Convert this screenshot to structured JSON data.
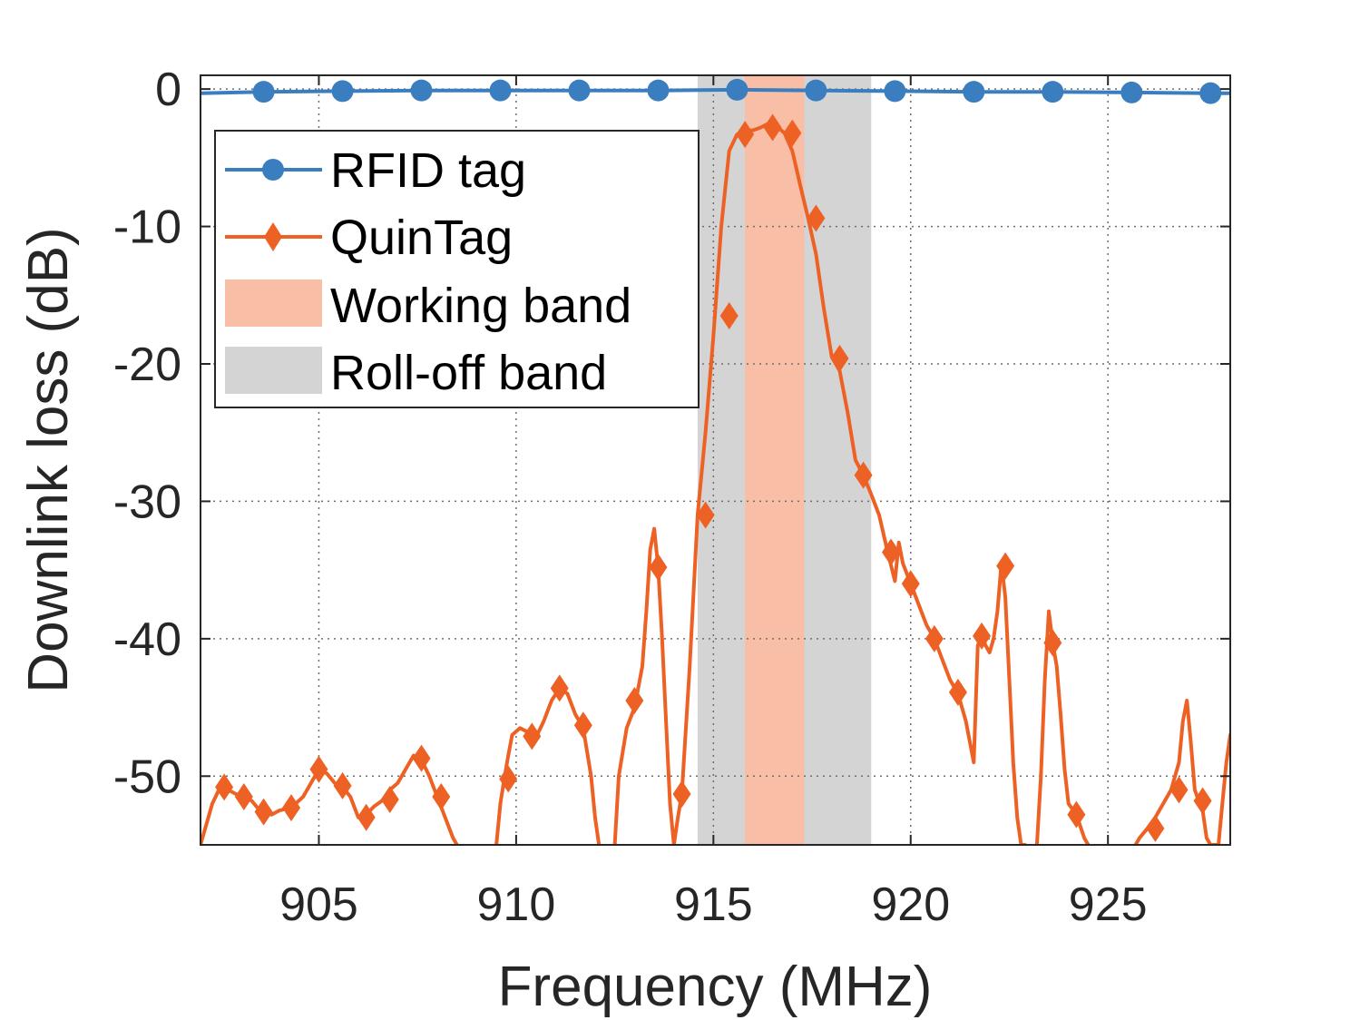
{
  "chart_data": {
    "type": "line",
    "xlabel": "Frequency (MHz)",
    "ylabel": "Downlink loss (dB)",
    "xlim": [
      902,
      928.1
    ],
    "ylim": [
      -55,
      1
    ],
    "x_ticks": [
      905,
      910,
      915,
      920,
      925
    ],
    "y_ticks": [
      0,
      -10,
      -20,
      -30,
      -40,
      -50
    ],
    "grid": true,
    "legend_position": "top-left",
    "bands": [
      {
        "name": "Roll-off band",
        "x": [
          914.6,
          919.0
        ],
        "color": "#d4d4d4"
      },
      {
        "name": "Working band",
        "x": [
          915.8,
          917.3
        ],
        "color": "#f8bea6"
      }
    ],
    "series": [
      {
        "name": "RFID tag",
        "color": "#3a7ebf",
        "marker": "circle",
        "x": [
          902.0,
          903.6,
          905.6,
          907.6,
          909.6,
          911.6,
          913.6,
          915.6,
          917.6,
          919.6,
          921.6,
          923.6,
          925.6,
          927.6,
          928.1
        ],
        "y": [
          -0.3,
          -0.2,
          -0.15,
          -0.1,
          -0.1,
          -0.1,
          -0.1,
          -0.05,
          -0.1,
          -0.15,
          -0.2,
          -0.2,
          -0.25,
          -0.3,
          -0.3
        ],
        "marker_x": [
          903.6,
          905.6,
          907.6,
          909.6,
          911.6,
          913.6,
          915.6,
          917.6,
          919.6,
          921.6,
          923.6,
          925.6,
          927.6
        ]
      },
      {
        "name": "QuinTag",
        "color": "#ee6124",
        "marker": "diamond",
        "segments": [
          {
            "x": [
              902.0,
              902.1,
              902.3,
              902.5,
              902.7,
              902.9,
              903.1,
              903.3,
              903.5,
              903.8,
              904.0,
              904.3,
              904.6,
              904.8,
              905.0,
              905.2,
              905.4,
              905.6,
              905.8,
              906.0,
              906.2,
              906.4,
              906.6,
              906.8,
              907.0,
              907.2,
              907.4,
              907.6,
              907.8,
              908.0,
              908.2,
              908.4,
              908.5
            ],
            "y": [
              -55,
              -54,
              -52,
              -50.8,
              -51,
              -51.3,
              -51.5,
              -51.8,
              -52.5,
              -52.8,
              -52.5,
              -52.3,
              -51.5,
              -50.5,
              -49.5,
              -49.8,
              -50.5,
              -50.8,
              -51.5,
              -53.0,
              -52.8,
              -52.2,
              -51.8,
              -51.0,
              -50.5,
              -49.5,
              -48.5,
              -48.8,
              -50.0,
              -51.5,
              -53.0,
              -54.5,
              -55
            ]
          },
          {
            "x": [
              909.5,
              909.6,
              909.7,
              909.8,
              909.9,
              910.1,
              910.3,
              910.5,
              910.7,
              910.9,
              911.1,
              911.3,
              911.5,
              911.7,
              911.9,
              912.0,
              912.1
            ],
            "y": [
              -55,
              -52,
              -50.2,
              -48.5,
              -47.0,
              -46.5,
              -46.8,
              -47.2,
              -46.0,
              -44.5,
              -43.6,
              -44.0,
              -45.5,
              -46.5,
              -50.0,
              -53.0,
              -55
            ]
          },
          {
            "x": [
              912.5,
              912.6,
              912.8,
              913.0,
              913.2,
              913.3,
              913.4,
              913.5,
              913.6,
              913.7,
              913.8,
              913.9,
              914.0,
              914.1,
              914.2,
              914.4,
              914.6,
              914.8,
              915.0,
              915.2,
              915.4,
              915.6,
              915.8,
              916.0,
              916.2,
              916.4,
              916.6,
              916.8,
              917.0,
              917.2,
              917.4,
              917.6,
              917.8,
              918.0,
              918.2,
              918.4,
              918.6,
              918.8,
              919.0,
              919.2,
              919.4,
              919.6,
              919.7,
              919.8,
              920.0,
              920.2,
              920.4,
              920.6,
              920.8,
              921.0,
              921.2,
              921.4,
              921.6,
              921.7,
              921.8,
              921.9,
              922.0,
              922.1,
              922.2,
              922.3,
              922.4,
              922.5,
              922.6,
              922.7,
              922.8,
              922.9
            ],
            "y": [
              -55,
              -50,
              -46.5,
              -45.0,
              -42.0,
              -38.0,
              -33.5,
              -32.0,
              -34.8,
              -40.0,
              -46.0,
              -52.0,
              -55,
              -53.0,
              -51.3,
              -42.0,
              -31.0,
              -25.0,
              -18.0,
              -10.0,
              -4.5,
              -3.3,
              -3.0,
              -3.0,
              -2.8,
              -2.5,
              -2.7,
              -3.2,
              -4.5,
              -7.0,
              -9.4,
              -12.0,
              -16.0,
              -19.5,
              -20.5,
              -23.5,
              -27.0,
              -28.1,
              -29.5,
              -31.0,
              -33.5,
              -35.8,
              -33.0,
              -34.5,
              -36.0,
              -37.5,
              -39.0,
              -40.0,
              -41.5,
              -43.0,
              -44.0,
              -46.0,
              -49.0,
              -40.5,
              -39.8,
              -40.5,
              -41.0,
              -40.0,
              -38.0,
              -34.5,
              -37.0,
              -43.0,
              -49.0,
              -53.0,
              -55,
              -55
            ]
          },
          {
            "x": [
              923.2,
              923.3,
              923.4,
              923.5,
              923.6,
              923.7,
              923.8,
              923.9,
              924.0,
              924.2,
              924.4,
              924.5
            ],
            "y": [
              -55,
              -50.0,
              -43.0,
              -38.0,
              -40.3,
              -42.0,
              -45.5,
              -49.5,
              -52.0,
              -52.8,
              -54.5,
              -55
            ]
          },
          {
            "x": [
              925.7,
              925.8,
              926.0,
              926.2,
              926.4,
              926.6,
              926.8,
              926.9,
              927.0,
              927.1,
              927.2,
              927.3,
              927.4,
              927.5,
              927.6,
              927.7,
              927.8,
              927.9,
              928.0,
              928.1
            ],
            "y": [
              -55,
              -54.5,
              -53.8,
              -53.0,
              -52.0,
              -51.0,
              -49.0,
              -46.0,
              -44.5,
              -47.5,
              -51.0,
              -51.8,
              -52.5,
              -54.5,
              -55,
              -55,
              -55,
              -52.0,
              -49.0,
              -47.0
            ]
          }
        ],
        "markers": [
          [
            902.6,
            -50.8
          ],
          [
            903.1,
            -51.5
          ],
          [
            903.6,
            -52.6
          ],
          [
            904.3,
            -52.3
          ],
          [
            905.0,
            -49.5
          ],
          [
            905.6,
            -50.7
          ],
          [
            906.2,
            -53.0
          ],
          [
            906.8,
            -51.7
          ],
          [
            907.6,
            -48.7
          ],
          [
            908.1,
            -51.5
          ],
          [
            909.8,
            -50.2
          ],
          [
            910.4,
            -47.1
          ],
          [
            911.1,
            -43.6
          ],
          [
            911.7,
            -46.3
          ],
          [
            913.0,
            -44.5
          ],
          [
            913.6,
            -34.8
          ],
          [
            914.2,
            -51.3
          ],
          [
            914.8,
            -31.0
          ],
          [
            915.4,
            -16.5
          ],
          [
            915.8,
            -3.3
          ],
          [
            916.5,
            -2.8
          ],
          [
            917.0,
            -3.2
          ],
          [
            917.6,
            -9.4
          ],
          [
            918.2,
            -19.6
          ],
          [
            918.8,
            -28.1
          ],
          [
            919.5,
            -33.7
          ],
          [
            920.0,
            -36.0
          ],
          [
            920.6,
            -40.0
          ],
          [
            921.2,
            -43.9
          ],
          [
            921.8,
            -39.8
          ],
          [
            922.4,
            -34.7
          ],
          [
            923.6,
            -40.3
          ],
          [
            924.2,
            -52.8
          ],
          [
            926.2,
            -53.8
          ],
          [
            926.8,
            -51.0
          ],
          [
            927.4,
            -51.8
          ]
        ]
      }
    ],
    "legend": [
      {
        "label": "RFID tag",
        "kind": "line-circle"
      },
      {
        "label": "QuinTag",
        "kind": "line-diamond"
      },
      {
        "label": "Working band",
        "kind": "patch"
      },
      {
        "label": "Roll-off band",
        "kind": "patch"
      }
    ]
  }
}
